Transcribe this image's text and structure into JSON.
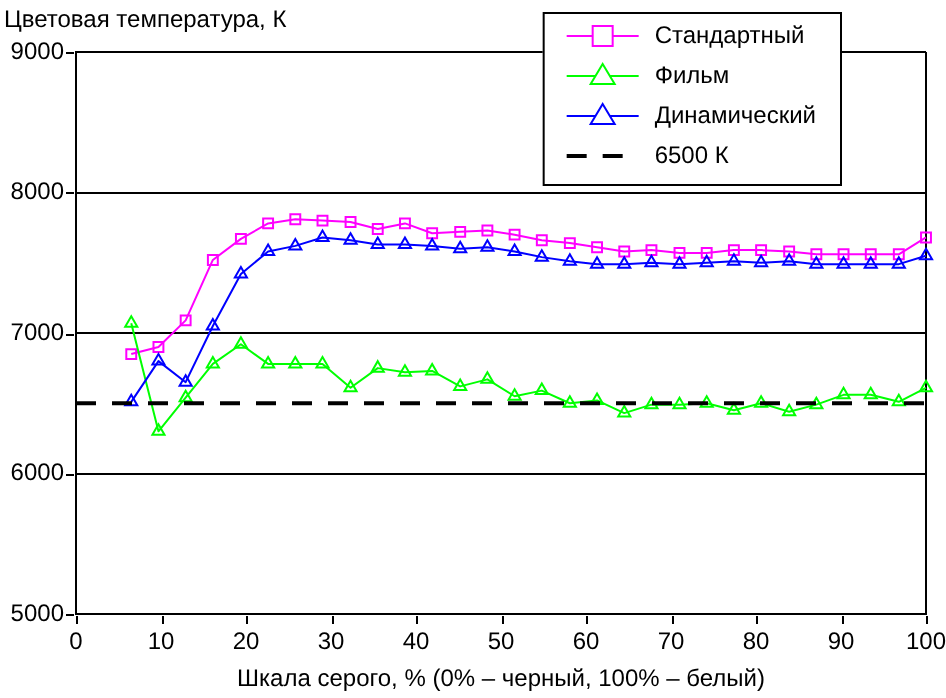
{
  "chart_data": {
    "type": "line",
    "ylabel": "Цветовая температура, К",
    "xlabel": "Шкала серого, % (0% – черный, 100% – белый)",
    "x": [
      6.5,
      9.7,
      12.9,
      16.1,
      19.4,
      22.6,
      25.8,
      29.0,
      32.3,
      35.5,
      38.7,
      41.9,
      45.2,
      48.4,
      51.6,
      54.8,
      58.1,
      61.3,
      64.5,
      67.7,
      71.0,
      74.2,
      77.4,
      80.6,
      83.9,
      87.1,
      90.3,
      93.5,
      96.8,
      100
    ],
    "series": [
      {
        "name": "Стандартный",
        "color": "#ff00ff",
        "marker": "square",
        "values": [
          6850,
          6900,
          7090,
          7520,
          7670,
          7780,
          7810,
          7800,
          7790,
          7740,
          7780,
          7710,
          7720,
          7730,
          7700,
          7660,
          7640,
          7610,
          7580,
          7590,
          7570,
          7570,
          7590,
          7590,
          7580,
          7560,
          7560,
          7560,
          7560,
          7680
        ]
      },
      {
        "name": "Фильм",
        "color": "#00ff00",
        "marker": "triangle",
        "values": [
          7070,
          6300,
          6540,
          6780,
          6920,
          6780,
          6780,
          6780,
          6610,
          6750,
          6720,
          6730,
          6620,
          6670,
          6550,
          6590,
          6500,
          6520,
          6430,
          6490,
          6490,
          6500,
          6450,
          6500,
          6440,
          6490,
          6560,
          6560,
          6510,
          6610
        ]
      },
      {
        "name": "Динамический",
        "color": "#0000ff",
        "marker": "triangle",
        "values": [
          6510,
          6800,
          6650,
          7050,
          7420,
          7580,
          7620,
          7680,
          7660,
          7630,
          7630,
          7620,
          7600,
          7610,
          7580,
          7540,
          7510,
          7490,
          7490,
          7500,
          7490,
          7500,
          7510,
          7500,
          7510,
          7490,
          7490,
          7490,
          7490,
          7550
        ]
      }
    ],
    "ref_lines": [
      {
        "axis": "y",
        "value": 6500,
        "label": "6500 К",
        "color": "#000000",
        "line_style": "dashed"
      }
    ],
    "xlim": [
      0,
      100
    ],
    "xticks": [
      0,
      10,
      20,
      30,
      40,
      50,
      60,
      70,
      80,
      90,
      100
    ],
    "ylim": [
      5000,
      9000
    ],
    "yticks": [
      5000,
      6000,
      7000,
      8000,
      9000
    ],
    "grid": "y",
    "legend": "top right"
  }
}
